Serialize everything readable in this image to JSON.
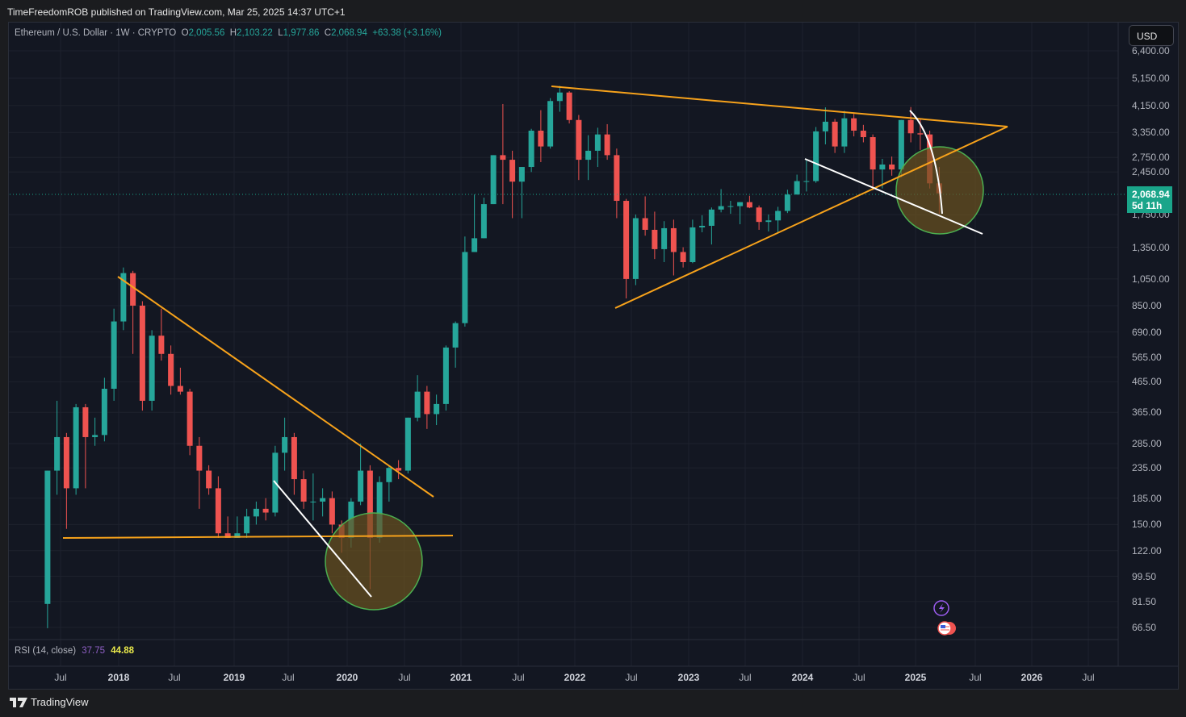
{
  "header": {
    "published": "TimeFreedomROB published on TradingView.com, Mar 25, 2025 14:37 UTC+1"
  },
  "legend": {
    "symbol": "Ethereum / U.S. Dollar · 1W · CRYPTO",
    "o_label": "O",
    "o": "2,005.56",
    "h_label": "H",
    "h": "2,103.22",
    "l_label": "L",
    "l": "1,977.86",
    "c_label": "C",
    "c": "2,068.94",
    "change": "+63.38 (+3.16%)"
  },
  "currency_button": "USD",
  "last_price": {
    "price": "2,068.94",
    "countdown": "5d 11h"
  },
  "rsi": {
    "label": "RSI (14, close)",
    "value1": "37.75",
    "value2": "44.88"
  },
  "footer": {
    "brand": "TradingView"
  },
  "colors": {
    "up": "#26a69a",
    "down": "#ef5350",
    "trendline": "#f7a21b",
    "annotation": "#ffffff",
    "circle_stroke": "#4caf50",
    "circle_fill": "#6b5220"
  },
  "chart_data": {
    "type": "candlestick",
    "scale": "log",
    "ylim": [
      60,
      7000
    ],
    "price_ticks": [
      "6,400.00",
      "5,150.00",
      "4,150.00",
      "3,350.00",
      "2,750.00",
      "2,450.00",
      "1,750.00",
      "1,350.00",
      "1,050.00",
      "850.00",
      "690.00",
      "565.00",
      "465.00",
      "365.00",
      "285.00",
      "235.00",
      "185.00",
      "150.00",
      "122.00",
      "99.50",
      "81.50",
      "66.50"
    ],
    "time_ticks": [
      "Jul",
      "2018",
      "Jul",
      "2019",
      "Jul",
      "2020",
      "Jul",
      "2021",
      "Jul",
      "2022",
      "Jul",
      "2023",
      "Jul",
      "2024",
      "Jul",
      "2025",
      "Jul",
      "2026",
      "Jul"
    ],
    "interval_shown": "monthly approximation of weekly candles",
    "candles": [
      [
        "2017-05",
        80,
        230,
        66,
        230
      ],
      [
        "2017-06",
        230,
        400,
        190,
        300
      ],
      [
        "2017-07",
        300,
        310,
        145,
        200
      ],
      [
        "2017-08",
        200,
        390,
        190,
        380
      ],
      [
        "2017-09",
        380,
        390,
        200,
        300
      ],
      [
        "2017-10",
        300,
        350,
        280,
        305
      ],
      [
        "2017-11",
        305,
        480,
        290,
        440
      ],
      [
        "2017-12",
        440,
        830,
        400,
        750
      ],
      [
        "2018-01",
        750,
        1150,
        700,
        1100
      ],
      [
        "2018-02",
        1100,
        1120,
        580,
        850
      ],
      [
        "2018-03",
        850,
        880,
        370,
        400
      ],
      [
        "2018-04",
        400,
        700,
        370,
        670
      ],
      [
        "2018-05",
        670,
        830,
        550,
        580
      ],
      [
        "2018-06",
        580,
        620,
        420,
        450
      ],
      [
        "2018-07",
        450,
        520,
        420,
        430
      ],
      [
        "2018-08",
        430,
        440,
        260,
        280
      ],
      [
        "2018-09",
        280,
        300,
        170,
        230
      ],
      [
        "2018-10",
        230,
        240,
        190,
        200
      ],
      [
        "2018-11",
        200,
        220,
        135,
        140
      ],
      [
        "2018-12",
        140,
        160,
        135,
        135
      ],
      [
        "2019-01",
        135,
        160,
        135,
        140
      ],
      [
        "2019-02",
        140,
        170,
        135,
        160
      ],
      [
        "2019-03",
        160,
        180,
        150,
        170
      ],
      [
        "2019-04",
        170,
        185,
        155,
        165
      ],
      [
        "2019-05",
        165,
        280,
        160,
        265
      ],
      [
        "2019-06",
        265,
        350,
        230,
        300
      ],
      [
        "2019-07",
        300,
        310,
        190,
        215
      ],
      [
        "2019-08",
        215,
        230,
        170,
        180
      ],
      [
        "2019-09",
        180,
        225,
        155,
        180
      ],
      [
        "2019-10",
        180,
        200,
        160,
        185
      ],
      [
        "2019-11",
        185,
        195,
        140,
        150
      ],
      [
        "2019-12",
        150,
        155,
        120,
        135
      ],
      [
        "2020-01",
        135,
        185,
        125,
        180
      ],
      [
        "2020-02",
        180,
        285,
        175,
        230
      ],
      [
        "2020-03",
        230,
        240,
        90,
        135
      ],
      [
        "2020-04",
        135,
        220,
        130,
        210
      ],
      [
        "2020-05",
        210,
        240,
        180,
        235
      ],
      [
        "2020-06",
        235,
        250,
        215,
        230
      ],
      [
        "2020-07",
        230,
        350,
        225,
        350
      ],
      [
        "2020-08",
        350,
        490,
        340,
        430
      ],
      [
        "2020-09",
        430,
        450,
        320,
        360
      ],
      [
        "2020-10",
        360,
        420,
        330,
        390
      ],
      [
        "2020-11",
        390,
        620,
        370,
        610
      ],
      [
        "2020-12",
        610,
        750,
        520,
        740
      ],
      [
        "2021-01",
        740,
        1470,
        720,
        1300
      ],
      [
        "2021-02",
        1300,
        2050,
        1300,
        1450
      ],
      [
        "2021-03",
        1450,
        2000,
        1450,
        1900
      ],
      [
        "2021-04",
        1900,
        2800,
        1900,
        2800
      ],
      [
        "2021-05",
        2800,
        4200,
        1900,
        2700
      ],
      [
        "2021-06",
        2700,
        2900,
        1700,
        2270
      ],
      [
        "2021-07",
        2270,
        2550,
        1700,
        2550
      ],
      [
        "2021-08",
        2550,
        3450,
        2450,
        3400
      ],
      [
        "2021-09",
        3400,
        4000,
        2650,
        3000
      ],
      [
        "2021-10",
        3000,
        4400,
        2950,
        4300
      ],
      [
        "2021-11",
        4300,
        4850,
        3950,
        4600
      ],
      [
        "2021-12",
        4600,
        4650,
        3600,
        3700
      ],
      [
        "2022-01",
        3700,
        3850,
        2300,
        2700
      ],
      [
        "2022-02",
        2700,
        3280,
        2300,
        2900
      ],
      [
        "2022-03",
        2900,
        3480,
        2550,
        3300
      ],
      [
        "2022-04",
        3300,
        3580,
        2700,
        2800
      ],
      [
        "2022-05",
        2800,
        2950,
        1700,
        1950
      ],
      [
        "2022-06",
        1950,
        1980,
        900,
        1050
      ],
      [
        "2022-07",
        1050,
        1750,
        1000,
        1700
      ],
      [
        "2022-08",
        1700,
        2020,
        1480,
        1550
      ],
      [
        "2022-09",
        1550,
        1790,
        1230,
        1330
      ],
      [
        "2022-10",
        1330,
        1660,
        1200,
        1570
      ],
      [
        "2022-11",
        1570,
        1680,
        1080,
        1300
      ],
      [
        "2022-12",
        1300,
        1350,
        1150,
        1200
      ],
      [
        "2023-01",
        1200,
        1680,
        1190,
        1580
      ],
      [
        "2023-02",
        1580,
        1740,
        1520,
        1600
      ],
      [
        "2023-03",
        1600,
        1850,
        1380,
        1820
      ],
      [
        "2023-04",
        1820,
        2140,
        1780,
        1870
      ],
      [
        "2023-05",
        1870,
        1950,
        1760,
        1870
      ],
      [
        "2023-06",
        1870,
        1930,
        1620,
        1930
      ],
      [
        "2023-07",
        1930,
        2030,
        1840,
        1850
      ],
      [
        "2023-08",
        1850,
        1880,
        1550,
        1650
      ],
      [
        "2023-09",
        1650,
        1750,
        1530,
        1670
      ],
      [
        "2023-10",
        1670,
        1860,
        1520,
        1800
      ],
      [
        "2023-11",
        1800,
        2130,
        1770,
        2050
      ],
      [
        "2023-12",
        2050,
        2400,
        2050,
        2280
      ],
      [
        "2024-01",
        2280,
        2720,
        2100,
        2280
      ],
      [
        "2024-02",
        2280,
        3500,
        2250,
        3380
      ],
      [
        "2024-03",
        3380,
        4090,
        3050,
        3650
      ],
      [
        "2024-04",
        3650,
        3730,
        2850,
        3000
      ],
      [
        "2024-05",
        3000,
        3980,
        2850,
        3750
      ],
      [
        "2024-06",
        3750,
        3880,
        3250,
        3400
      ],
      [
        "2024-07",
        3400,
        3560,
        3100,
        3230
      ],
      [
        "2024-08",
        3230,
        3300,
        2120,
        2500
      ],
      [
        "2024-09",
        2500,
        2720,
        2150,
        2600
      ],
      [
        "2024-10",
        2600,
        2770,
        2380,
        2500
      ],
      [
        "2024-11",
        2500,
        3700,
        2350,
        3700
      ],
      [
        "2024-12",
        3700,
        4100,
        3100,
        3330
      ],
      [
        "2025-01",
        3330,
        3750,
        2920,
        3300
      ],
      [
        "2025-02",
        3300,
        3400,
        2150,
        2240
      ],
      [
        "2025-03",
        2240,
        2550,
        1760,
        2069
      ]
    ]
  }
}
